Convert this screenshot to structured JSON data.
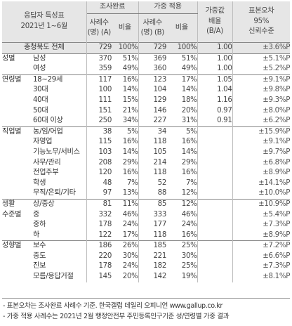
{
  "header": {
    "title_line1": "응답자 특성표",
    "title_line2": "2021년 1~6월",
    "group_complete": "조사완료",
    "group_weighted": "가중 적용",
    "weight_ratio_line1": "가중값",
    "weight_ratio_line2": "배율",
    "weight_ratio_line3": "(B/A)",
    "moe_line1": "표본오차",
    "moe_line2": "95%",
    "moe_line3": "신뢰수준",
    "cases_a_line1": "사례수",
    "cases_a_line2": "(명) (A)",
    "ratio_label": "비율",
    "cases_b_line1": "사례수",
    "cases_b_line2": "(명) (B)",
    "ratio_label_b": "비율"
  },
  "total": {
    "label": "충청북도 전체",
    "n": "729",
    "p": "100%",
    "w": "729",
    "wp": "100%",
    "r": "1.00",
    "moe": "±3.6%P"
  },
  "groups": [
    {
      "cat": "성별",
      "rows": [
        {
          "sub": "남성",
          "n": "370",
          "p": "51%",
          "w": "369",
          "wp": "51%",
          "r": "1.00",
          "moe": "±5.1%P"
        },
        {
          "sub": "여성",
          "n": "359",
          "p": "49%",
          "w": "360",
          "wp": "49%",
          "r": "1.00",
          "moe": "±5.2%P"
        }
      ]
    },
    {
      "cat": "연령별",
      "rows": [
        {
          "sub": "18~29세",
          "n": "117",
          "p": "16%",
          "w": "123",
          "wp": "17%",
          "r": "1.05",
          "moe": "±9.1%P"
        },
        {
          "sub": "30대",
          "n": "100",
          "p": "14%",
          "w": "104",
          "wp": "14%",
          "r": "1.04",
          "moe": "±9.8%P"
        },
        {
          "sub": "40대",
          "n": "111",
          "p": "15%",
          "w": "129",
          "wp": "18%",
          "r": "1.16",
          "moe": "±9.3%P"
        },
        {
          "sub": "50대",
          "n": "151",
          "p": "21%",
          "w": "146",
          "wp": "20%",
          "r": "0.97",
          "moe": "±8.0%P"
        },
        {
          "sub": "60대 이상",
          "n": "250",
          "p": "34%",
          "w": "227",
          "wp": "31%",
          "r": "0.91",
          "moe": "±6.2%P"
        }
      ]
    },
    {
      "cat": "직업별",
      "rows": [
        {
          "sub": "농/임/어업",
          "n": "38",
          "p": "5%",
          "w": "34",
          "wp": "5%",
          "r": "",
          "moe": "±15.9%P"
        },
        {
          "sub": "자영업",
          "n": "115",
          "p": "16%",
          "w": "118",
          "wp": "16%",
          "r": "",
          "moe": "±9.1%P"
        },
        {
          "sub": "기능노무/서비스",
          "n": "103",
          "p": "14%",
          "w": "105",
          "wp": "14%",
          "r": "",
          "moe": "±9.7%P"
        },
        {
          "sub": "사무/관리",
          "n": "208",
          "p": "29%",
          "w": "214",
          "wp": "29%",
          "r": "",
          "moe": "±6.8%P"
        },
        {
          "sub": "전업주부",
          "n": "120",
          "p": "16%",
          "w": "118",
          "wp": "16%",
          "r": "",
          "moe": "±8.9%P"
        },
        {
          "sub": "학생",
          "n": "48",
          "p": "7%",
          "w": "52",
          "wp": "7%",
          "r": "",
          "moe": "±14.1%P"
        },
        {
          "sub": "무직/은퇴/기타",
          "n": "97",
          "p": "13%",
          "w": "88",
          "wp": "12%",
          "r": "",
          "moe": "±10.0%P"
        }
      ]
    },
    {
      "cat": "생활",
      "cat2": "수준별",
      "rows": [
        {
          "sub": "상/중상",
          "n": "81",
          "p": "11%",
          "w": "85",
          "wp": "12%",
          "r": "",
          "moe": "±10.9%P"
        },
        {
          "sub": "중",
          "n": "332",
          "p": "46%",
          "w": "333",
          "wp": "46%",
          "r": "",
          "moe": "±5.4%P"
        },
        {
          "sub": "중하",
          "n": "178",
          "p": "24%",
          "w": "177",
          "wp": "24%",
          "r": "",
          "moe": "±7.3%P"
        },
        {
          "sub": "하",
          "n": "122",
          "p": "17%",
          "w": "118",
          "wp": "16%",
          "r": "",
          "moe": "±8.9%P"
        }
      ]
    },
    {
      "cat": "성향별",
      "rows": [
        {
          "sub": "보수",
          "n": "186",
          "p": "26%",
          "w": "185",
          "wp": "25%",
          "r": "",
          "moe": "±7.2%P"
        },
        {
          "sub": "중도",
          "n": "220",
          "p": "30%",
          "w": "221",
          "wp": "30%",
          "r": "",
          "moe": "±6.6%P"
        },
        {
          "sub": "진보",
          "n": "178",
          "p": "24%",
          "w": "182",
          "wp": "25%",
          "r": "",
          "moe": "±7.3%P"
        },
        {
          "sub": "모름/응답거절",
          "n": "145",
          "p": "20%",
          "w": "142",
          "wp": "19%",
          "r": "",
          "moe": "±8.1%P"
        }
      ]
    }
  ],
  "notes": [
    "- 표본오차는 조사완료 사례수 기준. 한국갤럽 데일리 오피니언 www.gallup.co.kr",
    "- 가중 적용 사례수는 2021년 2월 행정안전부 주민등록인구기준 성/연령별 가중 결과"
  ]
}
